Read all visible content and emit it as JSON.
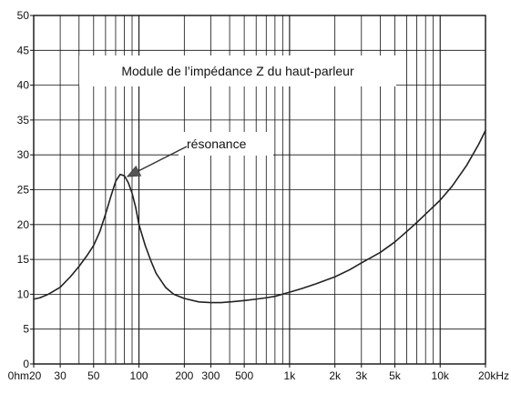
{
  "chart_data": {
    "type": "line",
    "title": "Module de l’impédance Z du haut-parleur",
    "xlabel": "",
    "ylabel": "",
    "x_scale": "log",
    "xlim": [
      20,
      20000
    ],
    "ylim": [
      0,
      50
    ],
    "grid": true,
    "x_tick_labels": [
      {
        "value": 20,
        "label": "0hm20"
      },
      {
        "value": 30,
        "label": "30"
      },
      {
        "value": 50,
        "label": "50"
      },
      {
        "value": 100,
        "label": "100"
      },
      {
        "value": 200,
        "label": "200"
      },
      {
        "value": 300,
        "label": "300"
      },
      {
        "value": 500,
        "label": "500"
      },
      {
        "value": 1000,
        "label": "1k"
      },
      {
        "value": 2000,
        "label": "2k"
      },
      {
        "value": 3000,
        "label": "3k"
      },
      {
        "value": 5000,
        "label": "5k"
      },
      {
        "value": 10000,
        "label": "10k"
      },
      {
        "value": 20000,
        "label": "20kHz"
      }
    ],
    "y_ticks": [
      0,
      5,
      10,
      15,
      20,
      25,
      30,
      35,
      40,
      45,
      50
    ],
    "series": [
      {
        "x": [
          20,
          22,
          25,
          30,
          35,
          40,
          45,
          50,
          55,
          60,
          65,
          70,
          75,
          80,
          85,
          90,
          95,
          100,
          110,
          120,
          130,
          150,
          170,
          200,
          250,
          300,
          350,
          400,
          500,
          600,
          700,
          800,
          1000,
          1200,
          1500,
          2000,
          2500,
          3000,
          4000,
          5000,
          6000,
          7000,
          8000,
          10000,
          12000,
          15000,
          18000,
          20000
        ],
        "y": [
          9.3,
          9.5,
          10,
          11,
          12.5,
          14,
          15.5,
          17,
          19,
          21.5,
          24,
          26.2,
          27.2,
          27,
          26,
          24.5,
          22.5,
          20,
          17,
          14.8,
          13,
          11,
          10,
          9.4,
          8.9,
          8.8,
          8.8,
          8.9,
          9.1,
          9.3,
          9.5,
          9.7,
          10.3,
          10.8,
          11.5,
          12.5,
          13.5,
          14.5,
          16,
          17.5,
          19,
          20.3,
          21.5,
          23.5,
          25.5,
          28.5,
          31.5,
          33.5
        ],
        "color": "#222222"
      }
    ],
    "annotations": [
      {
        "text": "résonance",
        "target_x": 80,
        "target_y": 27
      }
    ]
  }
}
